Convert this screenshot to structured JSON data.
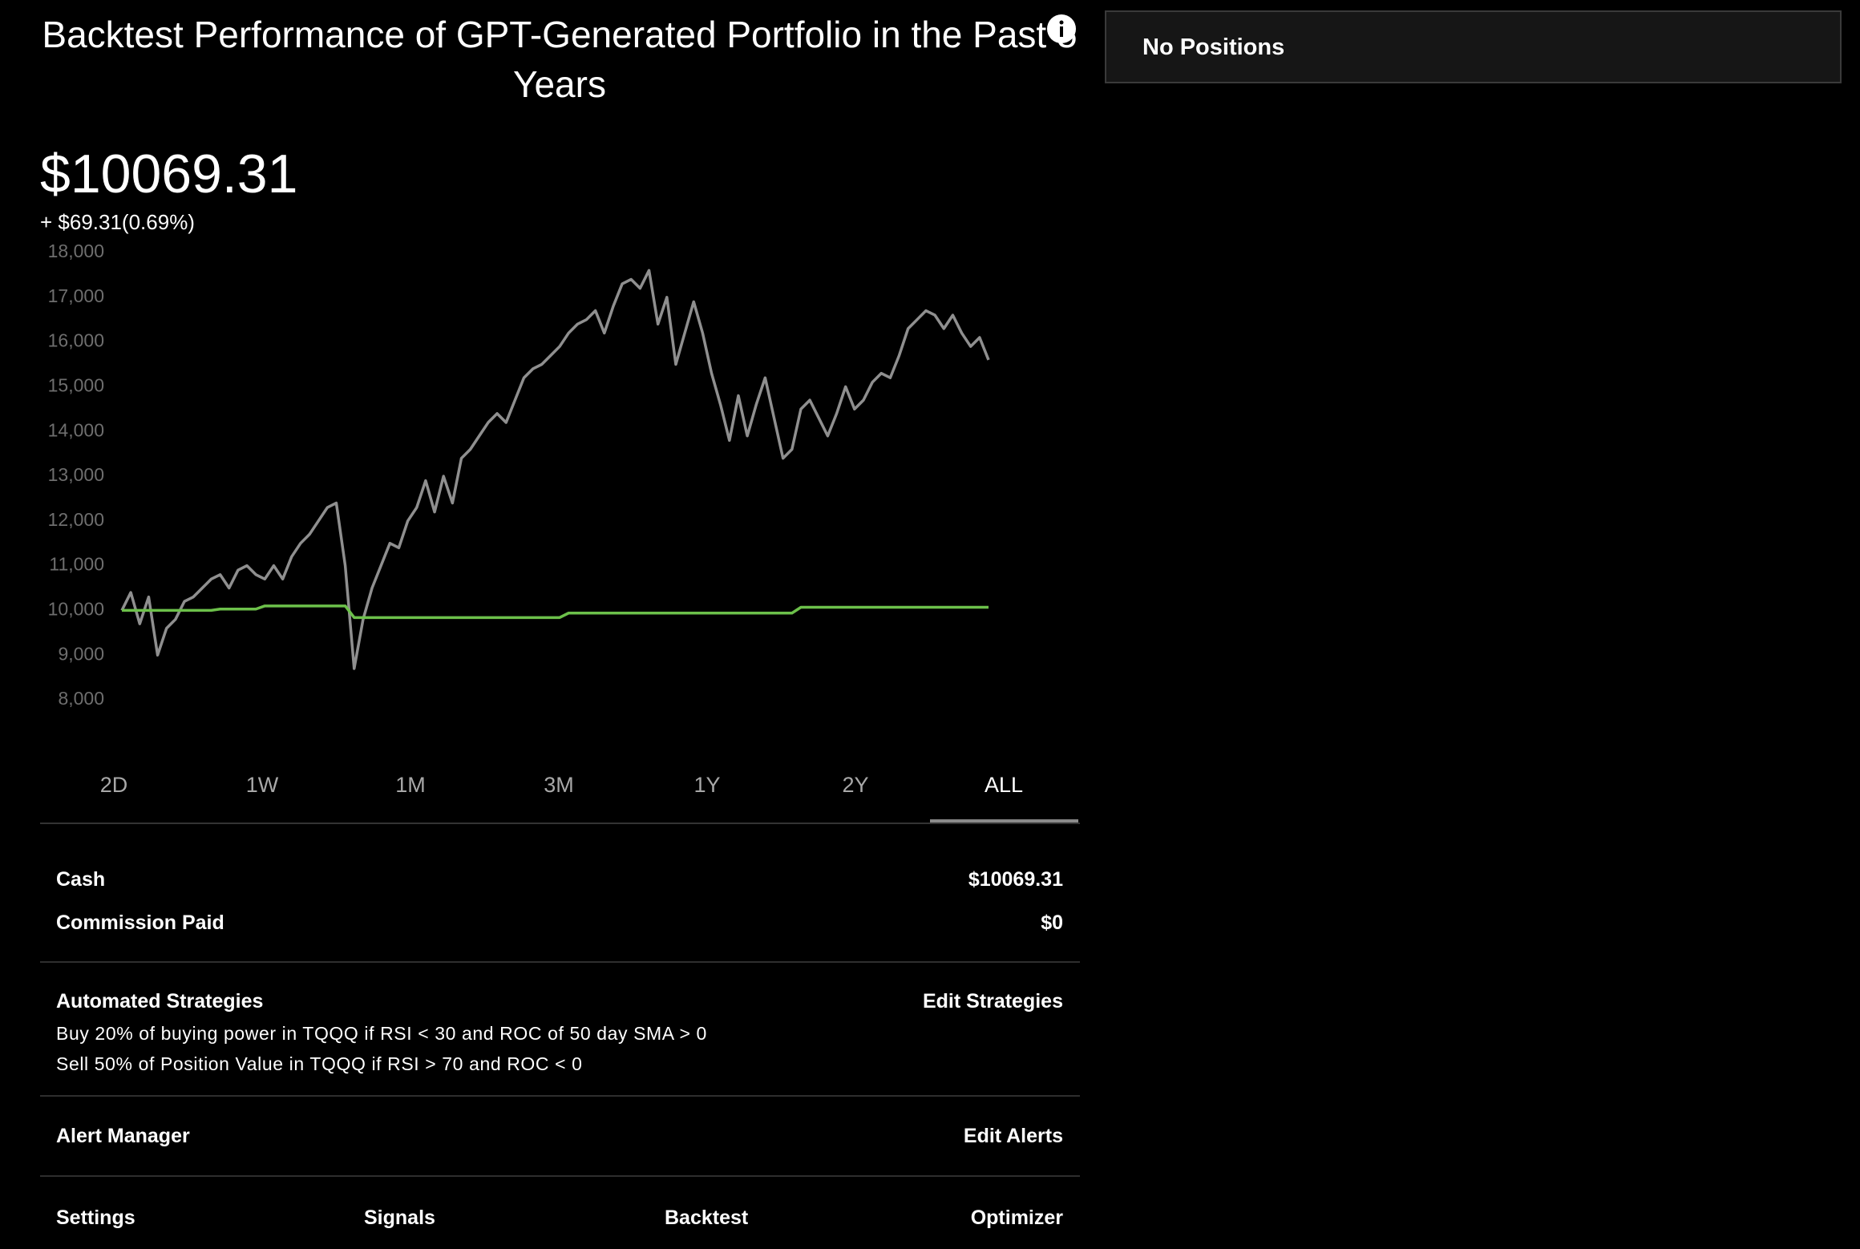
{
  "title": "Backtest Performance of GPT-Generated Portfolio in the Past 5 Years",
  "positions_panel": {
    "label": "No Positions"
  },
  "portfolio": {
    "value": "$10069.31",
    "change": "+ $69.31(0.69%)"
  },
  "chart_data": {
    "type": "line",
    "ylim": [
      8000,
      18000
    ],
    "yticks": [
      {
        "value": 18000,
        "label": "18,000"
      },
      {
        "value": 17000,
        "label": "17,000"
      },
      {
        "value": 16000,
        "label": "16,000"
      },
      {
        "value": 15000,
        "label": "15,000"
      },
      {
        "value": 14000,
        "label": "14,000"
      },
      {
        "value": 13000,
        "label": "13,000"
      },
      {
        "value": 12000,
        "label": "12,000"
      },
      {
        "value": 11000,
        "label": "11,000"
      },
      {
        "value": 10000,
        "label": "10,000"
      },
      {
        "value": 9000,
        "label": "9,000"
      },
      {
        "value": 8000,
        "label": "8,000"
      }
    ],
    "series": [
      {
        "color": "#8f8f8f",
        "values": [
          10000,
          10400,
          9700,
          10300,
          9000,
          9600,
          9800,
          10200,
          10300,
          10500,
          10700,
          10800,
          10500,
          10900,
          11000,
          10800,
          10700,
          11000,
          10700,
          11200,
          11500,
          11700,
          12000,
          12300,
          12400,
          11000,
          8700,
          9800,
          10500,
          11000,
          11500,
          11400,
          12000,
          12300,
          12900,
          12200,
          13000,
          12400,
          13400,
          13600,
          13900,
          14200,
          14400,
          14200,
          14700,
          15200,
          15400,
          15500,
          15700,
          15900,
          16200,
          16400,
          16500,
          16700,
          16200,
          16800,
          17300,
          17400,
          17200,
          17600,
          16400,
          17000,
          15500,
          16200,
          16900,
          16200,
          15300,
          14600,
          13800,
          14800,
          13900,
          14600,
          15200,
          14300,
          13400,
          13600,
          14500,
          14700,
          14300,
          13900,
          14400,
          15000,
          14500,
          14700,
          15100,
          15300,
          15200,
          15700,
          16300,
          16500,
          16700,
          16600,
          16300,
          16600,
          16200,
          15900,
          16100,
          15600
        ]
      },
      {
        "color": "#6cc04a",
        "values": [
          10000,
          10000,
          10000,
          10000,
          10000,
          10000,
          10000,
          10000,
          10000,
          10000,
          10000,
          10030,
          10030,
          10030,
          10030,
          10030,
          10100,
          10100,
          10100,
          10100,
          10100,
          10100,
          10100,
          10100,
          10100,
          10100,
          9840,
          9840,
          9840,
          9840,
          9840,
          9840,
          9840,
          9840,
          9840,
          9840,
          9840,
          9840,
          9840,
          9840,
          9840,
          9840,
          9840,
          9840,
          9840,
          9840,
          9840,
          9840,
          9840,
          9840,
          9940,
          9940,
          9940,
          9940,
          9940,
          9940,
          9940,
          9940,
          9940,
          9940,
          9940,
          9940,
          9940,
          9940,
          9940,
          9940,
          9940,
          9940,
          9940,
          9940,
          9940,
          9940,
          9940,
          9940,
          9940,
          9940,
          10069.31,
          10069.31,
          10069.31,
          10069.31,
          10069.31,
          10069.31,
          10069.31,
          10069.31,
          10069.31,
          10069.31,
          10069.31,
          10069.31,
          10069.31,
          10069.31,
          10069.31,
          10069.31,
          10069.31,
          10069.31,
          10069.31,
          10069.31,
          10069.31,
          10069.31
        ]
      }
    ]
  },
  "time_ranges": [
    "2D",
    "1W",
    "1M",
    "3M",
    "1Y",
    "2Y",
    "ALL"
  ],
  "selected_range": 6,
  "account": [
    {
      "label": "Cash",
      "value": "$10069.31"
    },
    {
      "label": "Commission Paid",
      "value": "$0"
    }
  ],
  "strategies": {
    "title": "Automated Strategies",
    "action": "Edit Strategies",
    "items": [
      "Buy 20% of buying power in TQQQ if RSI < 30 and ROC of 50 day SMA > 0",
      "Sell 50% of Position Value in TQQQ if RSI > 70 and ROC < 0"
    ]
  },
  "alerts": {
    "title": "Alert Manager",
    "action": "Edit Alerts"
  },
  "nav": [
    "Settings",
    "Signals",
    "Backtest",
    "Optimizer"
  ]
}
